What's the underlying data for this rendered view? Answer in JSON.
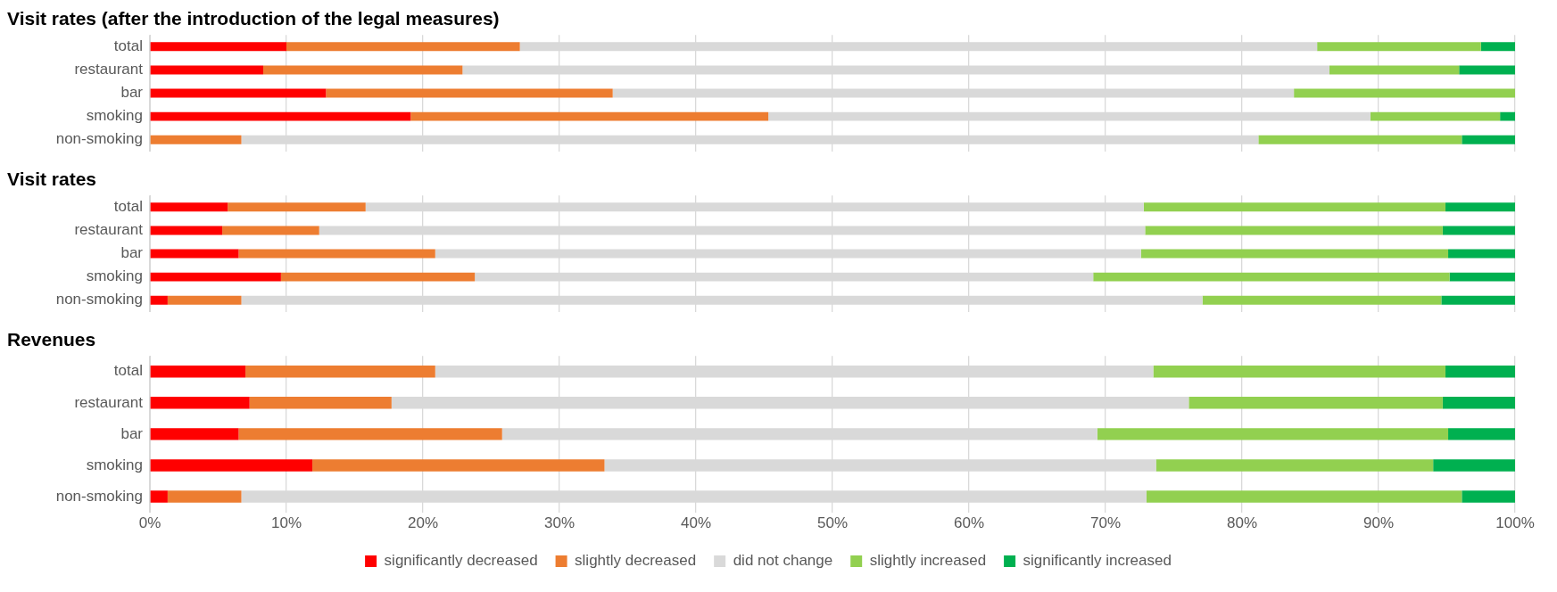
{
  "chart_data": [
    {
      "type": "bar",
      "orientation": "horizontal",
      "stacked": true,
      "title": "Visit rates (after the introduction of the legal measures)",
      "categories": [
        "total",
        "restaurant",
        "bar",
        "smoking",
        "non-smoking"
      ],
      "series": [
        {
          "color": "#ff0000",
          "values": [
            10,
            8.3,
            12.9,
            19.1,
            0
          ]
        },
        {
          "color": "#ed7d31",
          "values": [
            17.1,
            14.6,
            21,
            26.2,
            6.7
          ]
        },
        {
          "color": "#d9d9d9",
          "values": [
            58.4,
            63.5,
            49.9,
            44.1,
            74.5
          ]
        },
        {
          "color": "#92d050",
          "values": [
            12,
            9.5,
            16.2,
            9.5,
            14.9
          ]
        },
        {
          "color": "#00b050",
          "values": [
            2.5,
            4.1,
            0,
            1.1,
            3.9
          ]
        }
      ],
      "xlim": [
        0,
        100
      ],
      "xticks": [
        {
          "value": 0,
          "label": null
        },
        {
          "value": 10,
          "label": null
        },
        {
          "value": 20,
          "label": null
        },
        {
          "value": 30,
          "label": null
        },
        {
          "value": 40,
          "label": null
        },
        {
          "value": 50,
          "label": null
        },
        {
          "value": 60,
          "label": null
        },
        {
          "value": 70,
          "label": null
        },
        {
          "value": 80,
          "label": null
        },
        {
          "value": 90,
          "label": null
        },
        {
          "value": 100,
          "label": null
        }
      ],
      "grid": "x",
      "tick_labels": "y"
    },
    {
      "type": "bar",
      "orientation": "horizontal",
      "stacked": true,
      "title": "Visit rates",
      "categories": [
        "total",
        "restaurant",
        "bar",
        "smoking",
        "non-smoking"
      ],
      "series": [
        {
          "color": "#ff0000",
          "values": [
            5.7,
            5.3,
            6.5,
            9.6,
            1.3
          ]
        },
        {
          "color": "#ed7d31",
          "values": [
            10.1,
            7.1,
            14.4,
            14.2,
            5.4
          ]
        },
        {
          "color": "#d9d9d9",
          "values": [
            57,
            60.5,
            51.7,
            45.3,
            70.4
          ]
        },
        {
          "color": "#92d050",
          "values": [
            22.1,
            21.8,
            22.5,
            26.1,
            17.5
          ]
        },
        {
          "color": "#00b050",
          "values": [
            5.1,
            5.3,
            4.9,
            4.8,
            5.4
          ]
        }
      ],
      "xlim": [
        0,
        100
      ],
      "xticks": [
        {
          "value": 0,
          "label": null
        },
        {
          "value": 10,
          "label": null
        },
        {
          "value": 20,
          "label": null
        },
        {
          "value": 30,
          "label": null
        },
        {
          "value": 40,
          "label": null
        },
        {
          "value": 50,
          "label": null
        },
        {
          "value": 60,
          "label": null
        },
        {
          "value": 70,
          "label": null
        },
        {
          "value": 80,
          "label": null
        },
        {
          "value": 90,
          "label": null
        },
        {
          "value": 100,
          "label": null
        }
      ],
      "grid": "x",
      "tick_labels": "y"
    },
    {
      "type": "bar",
      "orientation": "horizontal",
      "stacked": true,
      "title": "Revenues",
      "categories": [
        "total",
        "restaurant",
        "bar",
        "smoking",
        "non-smoking"
      ],
      "series": [
        {
          "name": "significantly decreased",
          "color": "#ff0000",
          "values": [
            7,
            7.3,
            6.5,
            11.9,
            1.3
          ]
        },
        {
          "name": "slightly decreased",
          "color": "#ed7d31",
          "values": [
            13.9,
            10.4,
            19.3,
            21.4,
            5.4
          ]
        },
        {
          "name": "did not change",
          "color": "#d9d9d9",
          "values": [
            52.6,
            58.4,
            43.6,
            40.4,
            66.3
          ]
        },
        {
          "name": "slightly increased",
          "color": "#92d050",
          "values": [
            21.4,
            18.6,
            25.7,
            20.3,
            23.1
          ]
        },
        {
          "name": "significantly increased",
          "color": "#00b050",
          "values": [
            5.1,
            5.3,
            4.9,
            6,
            3.9
          ]
        }
      ],
      "xlim": [
        0,
        100
      ],
      "xticks": [
        {
          "value": 0,
          "label": "0%"
        },
        {
          "value": 10,
          "label": "10%"
        },
        {
          "value": 20,
          "label": "20%"
        },
        {
          "value": 30,
          "label": "30%"
        },
        {
          "value": 40,
          "label": "40%"
        },
        {
          "value": 50,
          "label": "50%"
        },
        {
          "value": 60,
          "label": "60%"
        },
        {
          "value": 70,
          "label": "70%"
        },
        {
          "value": 80,
          "label": "80%"
        },
        {
          "value": 90,
          "label": "90%"
        },
        {
          "value": 100,
          "label": "100%"
        }
      ],
      "grid": "x",
      "legend": "bottom"
    }
  ]
}
